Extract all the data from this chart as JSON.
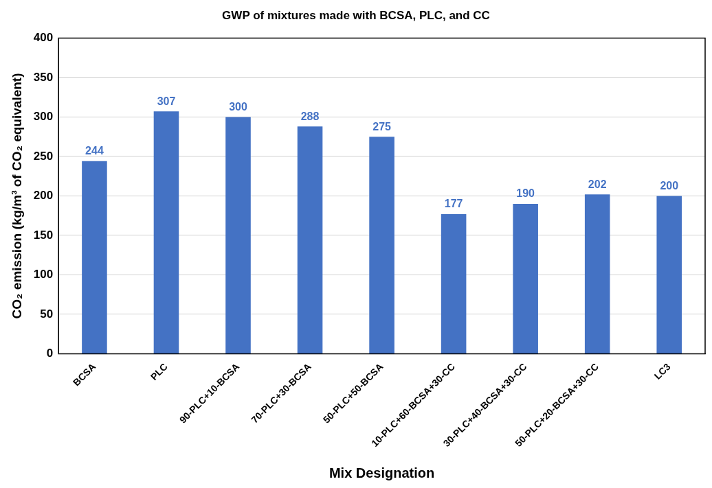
{
  "chart_data": {
    "type": "bar",
    "title": "GWP of mixtures made with BCSA, PLC, and CC",
    "xlabel": "Mix Designation",
    "ylabel": "CO₂ emission (kg/m³ of CO₂ equivalent)",
    "categories": [
      "BCSA",
      "PLC",
      "90-PLC+10-BCSA",
      "70-PLC+30-BCSA",
      "50-PLC+50-BCSA",
      "10-PLC+60-BCSA+30-CC",
      "30-PLC+40-BCSA+30-CC",
      "50-PLC+20-BCSA+30-CC",
      "LC3"
    ],
    "values": [
      244,
      307,
      300,
      288,
      275,
      177,
      190,
      202,
      200
    ],
    "color": "#4472c4",
    "ylim": [
      0,
      400
    ],
    "yticks": [
      0,
      50,
      100,
      150,
      200,
      250,
      300,
      350,
      400
    ],
    "grid": "y",
    "data_labels": true,
    "legend": false
  }
}
